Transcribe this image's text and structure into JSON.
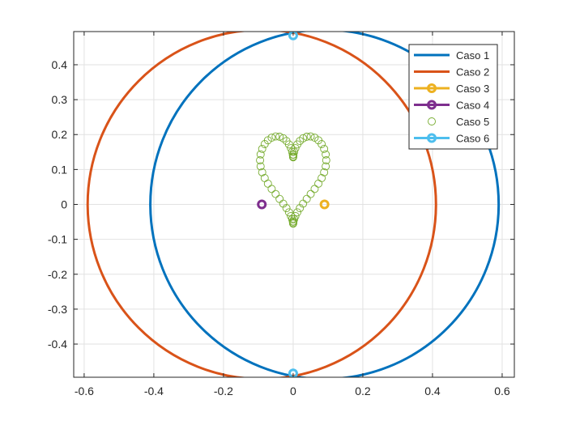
{
  "chart_data": {
    "type": "line",
    "title": "",
    "xlabel": "",
    "ylabel": "",
    "xlim": [
      -0.63,
      0.635
    ],
    "ylim": [
      -0.495,
      0.495
    ],
    "grid": true,
    "legend_location": "top-right",
    "x_ticks": [
      {
        "value": -0.6,
        "label": "-0.6"
      },
      {
        "value": -0.4,
        "label": "-0.4"
      },
      {
        "value": -0.2,
        "label": "-0.2"
      },
      {
        "value": 0,
        "label": "0"
      },
      {
        "value": 0.2,
        "label": "0.2"
      },
      {
        "value": 0.4,
        "label": "0.4"
      },
      {
        "value": 0.6,
        "label": "0.6"
      }
    ],
    "y_ticks": [
      {
        "value": 0.4,
        "label": "0.4"
      },
      {
        "value": 0.3,
        "label": "0.3"
      },
      {
        "value": 0.2,
        "label": "0.2"
      },
      {
        "value": 0.1,
        "label": "0.1"
      },
      {
        "value": 0,
        "label": "0"
      },
      {
        "value": -0.1,
        "label": "-0.1"
      },
      {
        "value": -0.2,
        "label": "-0.2"
      },
      {
        "value": -0.3,
        "label": "-0.3"
      },
      {
        "value": -0.4,
        "label": "-0.4"
      }
    ],
    "series": [
      {
        "name": "Caso 1",
        "kind": "circle",
        "center": [
          0.09,
          0
        ],
        "radius": 0.5,
        "color": "#0072BD",
        "line": true,
        "marker": "none"
      },
      {
        "name": "Caso 2",
        "kind": "circle",
        "center": [
          -0.09,
          0
        ],
        "radius": 0.5,
        "color": "#D95319",
        "line": true,
        "marker": "none"
      },
      {
        "name": "Caso 3",
        "kind": "points",
        "x": [
          0.09
        ],
        "y": [
          0
        ],
        "color": "#EDB120",
        "line": true,
        "marker": "circle"
      },
      {
        "name": "Caso 4",
        "kind": "points",
        "x": [
          -0.09
        ],
        "y": [
          0
        ],
        "color": "#7E2F8E",
        "line": true,
        "marker": "circle"
      },
      {
        "name": "Caso 5",
        "kind": "heart",
        "x_scale": 0.095,
        "y_top": 0.135,
        "y_bottom": -0.055,
        "color": "#77AC30",
        "line": false,
        "marker": "circle"
      },
      {
        "name": "Caso 6",
        "kind": "points",
        "x": [
          0,
          0
        ],
        "y": [
          0.484,
          -0.484
        ],
        "color": "#4DBEEE",
        "line": true,
        "marker": "circle"
      }
    ]
  }
}
